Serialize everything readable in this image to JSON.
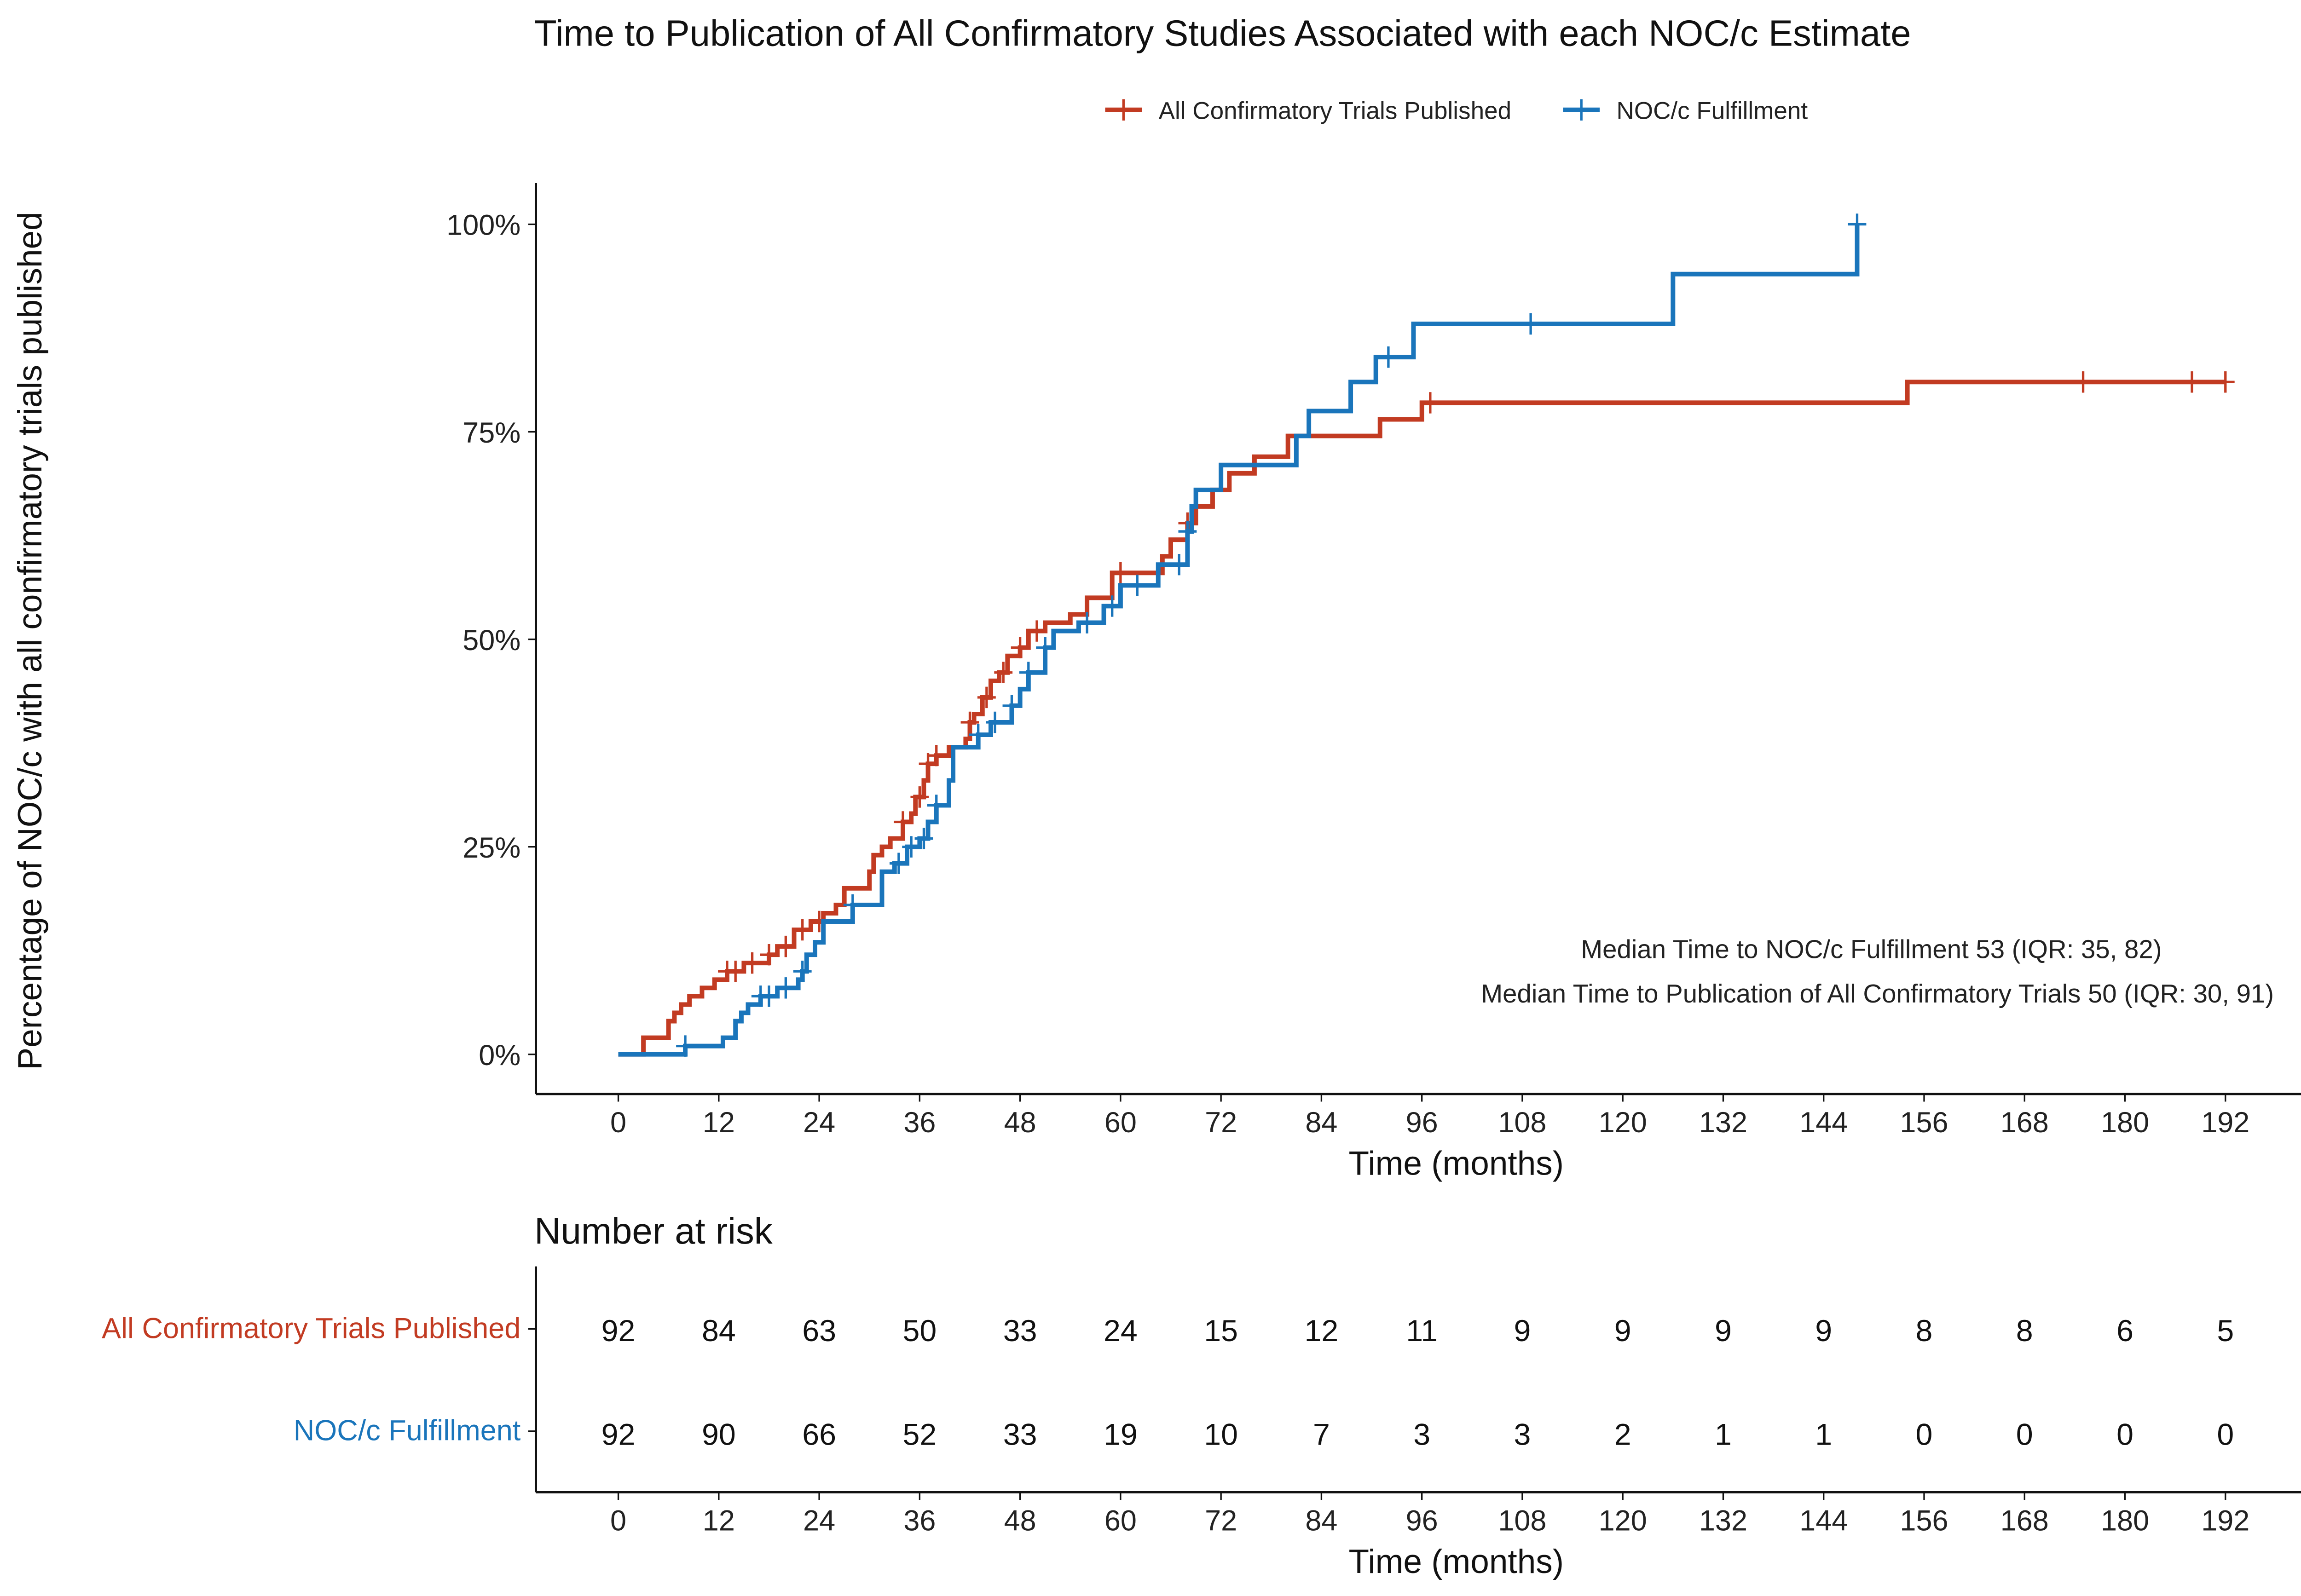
{
  "chart_data": {
    "type": "line",
    "subtype": "kaplan-meier-step",
    "title": "Time to Publication of All Confirmatory Studies Associated with each NOC/c Estimate",
    "xlabel": "Time (months)",
    "ylabel": "Percentage of NOC/c with all confirmatory trials published",
    "xlim": [
      0,
      192
    ],
    "ylim": [
      0,
      100
    ],
    "x_ticks": [
      0,
      12,
      24,
      36,
      48,
      60,
      72,
      84,
      96,
      108,
      120,
      132,
      144,
      156,
      168,
      180,
      192
    ],
    "y_ticks": [
      "0%",
      "25%",
      "50%",
      "75%",
      "100%"
    ],
    "y_tick_values": [
      0,
      25,
      50,
      75,
      100
    ],
    "grid": false,
    "legend_position": "top",
    "series": [
      {
        "name": "All Confirmatory Trials Published",
        "color": "#C23B22",
        "steps": [
          [
            0,
            0
          ],
          [
            3,
            2
          ],
          [
            6,
            4
          ],
          [
            6.7,
            5
          ],
          [
            7.5,
            6
          ],
          [
            8.5,
            7
          ],
          [
            10,
            8
          ],
          [
            11.5,
            9
          ],
          [
            13,
            10
          ],
          [
            15,
            11
          ],
          [
            18,
            12
          ],
          [
            19,
            13
          ],
          [
            21,
            15
          ],
          [
            23,
            16
          ],
          [
            24.5,
            17
          ],
          [
            26,
            18
          ],
          [
            27,
            20
          ],
          [
            30,
            22
          ],
          [
            30.5,
            24
          ],
          [
            31.5,
            25
          ],
          [
            32.5,
            26
          ],
          [
            34,
            28
          ],
          [
            35,
            29
          ],
          [
            35.5,
            31
          ],
          [
            36.5,
            33
          ],
          [
            37,
            35
          ],
          [
            38,
            36
          ],
          [
            39.5,
            37
          ],
          [
            41.5,
            38
          ],
          [
            42,
            40
          ],
          [
            42.5,
            41
          ],
          [
            43.5,
            43
          ],
          [
            44.5,
            45
          ],
          [
            45.5,
            46
          ],
          [
            46.5,
            48
          ],
          [
            48,
            49
          ],
          [
            49,
            51
          ],
          [
            51,
            52
          ],
          [
            54,
            53
          ],
          [
            56,
            55
          ],
          [
            59,
            58
          ],
          [
            65,
            60
          ],
          [
            66,
            62
          ],
          [
            68,
            64
          ],
          [
            69,
            66
          ],
          [
            71,
            68
          ],
          [
            73,
            70
          ],
          [
            76,
            72
          ],
          [
            80,
            74.5
          ],
          [
            91,
            76.5
          ],
          [
            96,
            78.5
          ],
          [
            154,
            81
          ]
        ],
        "end": 192,
        "censored": [
          13,
          14,
          16,
          18,
          20,
          22,
          24,
          34,
          36,
          37,
          38,
          42,
          44,
          46,
          48,
          50,
          60,
          68,
          97,
          175,
          188,
          192
        ]
      },
      {
        "name": "NOC/c Fulfillment",
        "color": "#1A75BB",
        "steps": [
          [
            0,
            0
          ],
          [
            8,
            1
          ],
          [
            12.5,
            2
          ],
          [
            14,
            4
          ],
          [
            14.7,
            5
          ],
          [
            15.5,
            6
          ],
          [
            17,
            7
          ],
          [
            19,
            8
          ],
          [
            21.5,
            9
          ],
          [
            22,
            10
          ],
          [
            22.5,
            12
          ],
          [
            23.5,
            13.5
          ],
          [
            24.5,
            16
          ],
          [
            28,
            18
          ],
          [
            31.5,
            22
          ],
          [
            33,
            23
          ],
          [
            34.5,
            25
          ],
          [
            36,
            26
          ],
          [
            37,
            28
          ],
          [
            38,
            30
          ],
          [
            39.5,
            33
          ],
          [
            40,
            37
          ],
          [
            43,
            38.5
          ],
          [
            44.5,
            40
          ],
          [
            47,
            42
          ],
          [
            48,
            44
          ],
          [
            49,
            46
          ],
          [
            51,
            49
          ],
          [
            52,
            51
          ],
          [
            55,
            52
          ],
          [
            58,
            54
          ],
          [
            60,
            56.5
          ],
          [
            64.5,
            59
          ],
          [
            68,
            63
          ],
          [
            68.5,
            66
          ],
          [
            69,
            68
          ],
          [
            72,
            71
          ],
          [
            81,
            74.5
          ],
          [
            82.5,
            77.5
          ],
          [
            87.5,
            81
          ],
          [
            90.5,
            84
          ],
          [
            95,
            88
          ],
          [
            126,
            94
          ],
          [
            148,
            100
          ]
        ],
        "end": 148,
        "censored": [
          8,
          17,
          18,
          20,
          22,
          28,
          33.5,
          35,
          36.5,
          38,
          43,
          45,
          47,
          49,
          51,
          56,
          59,
          62,
          67,
          68,
          92,
          109,
          148
        ]
      }
    ],
    "annotations": [
      "Median Time to NOC/c Fulfillment  53 (IQR: 35, 82)",
      "Median Time to Publication of All Confirmatory Trials  50 (IQR: 30, 91)"
    ],
    "risk_table": {
      "title": "Number at risk",
      "xlabel": "Time (months)",
      "rows": [
        {
          "label": "All Confirmatory Trials Published",
          "color": "#C23B22",
          "values": [
            92,
            84,
            63,
            50,
            33,
            24,
            15,
            12,
            11,
            9,
            9,
            9,
            9,
            8,
            8,
            6,
            5
          ]
        },
        {
          "label": "NOC/c Fulfillment",
          "color": "#1A75BB",
          "values": [
            92,
            90,
            66,
            52,
            33,
            19,
            10,
            7,
            3,
            3,
            2,
            1,
            1,
            0,
            0,
            0,
            0
          ]
        }
      ]
    }
  }
}
